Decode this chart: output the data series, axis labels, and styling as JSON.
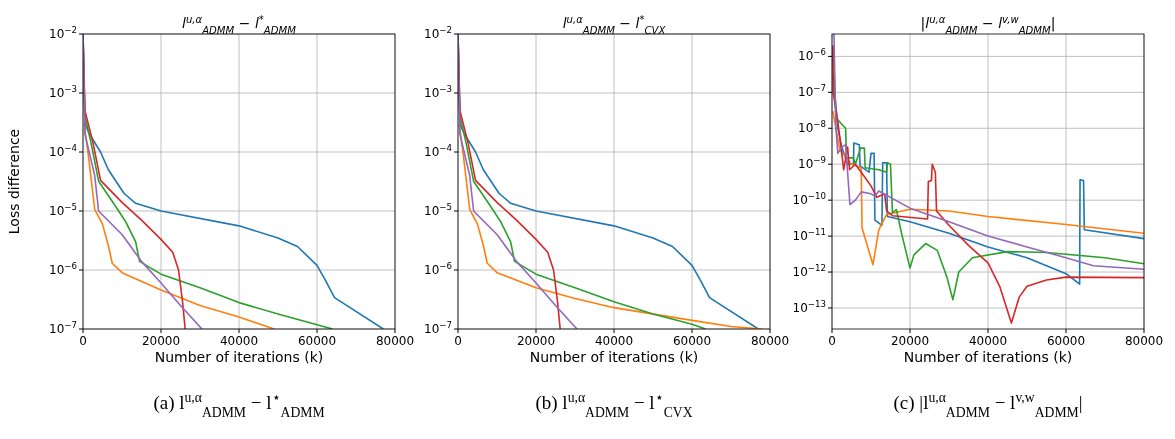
{
  "chart_data": [
    {
      "type": "line",
      "title": "l$^{u,α}$$_{ADMM}$ − l$^{*}$$_{ADMM}$",
      "xlabel": "Number of iterations (k)",
      "ylabel": "Loss difference",
      "annotations": [
        "(a) l$^{u,α}$$_{ADMM}$ − l$^{⋆}$$_{ADMM}$"
      ],
      "log": "y",
      "grid": true,
      "xlim": [
        0,
        80000
      ],
      "ylim": [
        1e-07,
        0.01
      ],
      "xticks": [
        0,
        20000,
        40000,
        60000,
        80000
      ],
      "yticks": [
        {
          "value": 1e-07,
          "label": "10$^{−7}$"
        },
        {
          "value": 1e-06,
          "label": "10$^{−6}$"
        },
        {
          "value": 1e-05,
          "label": "10$^{−5}$"
        },
        {
          "value": 0.0001,
          "label": "10$^{−4}$"
        },
        {
          "value": 0.001,
          "label": "10$^{−3}$"
        },
        {
          "value": 0.01,
          "label": "10$^{−2}$"
        }
      ],
      "series": [
        {
          "color": "#1f77b4",
          "x": [
            0,
            500,
            1500,
            4500,
            6500,
            10500,
            13500,
            20000,
            40000,
            50000,
            55000,
            60000,
            62000,
            64500,
            77000
          ],
          "values": [
            0.01,
            0.0003,
            0.00021,
            0.0001,
            5e-05,
            2e-05,
            1.35e-05,
            1e-05,
            5.6e-06,
            3.5e-06,
            2.5e-06,
            1.2e-06,
            7e-07,
            3.4e-07,
            1e-07
          ]
        },
        {
          "color": "#ff7f0e",
          "x": [
            300,
            1400,
            3000,
            5000,
            6500,
            7500,
            10000,
            20000,
            30000,
            40000,
            49000
          ],
          "values": [
            0.0003,
            8.5e-05,
            1.07e-05,
            6e-06,
            2.6e-06,
            1.3e-06,
            9e-07,
            4.6e-07,
            2.5e-07,
            1.6e-07,
            1e-07
          ]
        },
        {
          "color": "#2ca02c",
          "x": [
            0,
            500,
            2000,
            4000,
            8000,
            11000,
            13500,
            14500,
            20000,
            30000,
            40000,
            50000,
            64000
          ],
          "values": [
            0.01,
            0.0004,
            0.00015,
            3.2e-05,
            1.3e-05,
            6.5e-06,
            3e-06,
            1.4e-06,
            8.5e-07,
            5e-07,
            2.8e-07,
            1.8e-07,
            1e-07
          ]
        },
        {
          "color": "#d62728",
          "x": [
            0,
            500,
            2500,
            4500,
            10000,
            15000,
            20000,
            23000,
            24500,
            25500,
            26200
          ],
          "values": [
            0.01,
            0.0005,
            0.00015,
            3.3e-05,
            1.4e-05,
            7e-06,
            3.3e-06,
            2e-06,
            1e-06,
            3e-07,
            1e-07
          ]
        },
        {
          "color": "#9467bd",
          "x": [
            0,
            500,
            3000,
            3500,
            4000,
            10000,
            15000,
            20000,
            25000,
            30500
          ],
          "values": [
            0.01,
            0.0002,
            4e-05,
            2e-05,
            1e-05,
            4e-06,
            1.4e-06,
            6e-07,
            2.5e-07,
            1e-07
          ]
        }
      ]
    },
    {
      "type": "line",
      "title": "l$^{u,α}$$_{ADMM}$ − l$^{*}$$_{CVX}$",
      "xlabel": "Number of iterations (k)",
      "annotations": [
        "(b) l$^{u,α}$$_{ADMM}$ − l$^{⋆}$$_{CVX}$"
      ],
      "log": "y",
      "grid": true,
      "xlim": [
        0,
        80000
      ],
      "ylim": [
        1e-07,
        0.01
      ],
      "xticks": [
        0,
        20000,
        40000,
        60000,
        80000
      ],
      "yticks": [
        {
          "value": 1e-07,
          "label": "10$^{−7}$"
        },
        {
          "value": 1e-06,
          "label": "10$^{−6}$"
        },
        {
          "value": 1e-05,
          "label": "10$^{−5}$"
        },
        {
          "value": 0.0001,
          "label": "10$^{−4}$"
        },
        {
          "value": 0.001,
          "label": "10$^{−3}$"
        },
        {
          "value": 0.01,
          "label": "10$^{−2}$"
        }
      ],
      "series": [
        {
          "color": "#1f77b4",
          "x": [
            0,
            500,
            1500,
            4500,
            6500,
            10500,
            13500,
            20000,
            40000,
            50000,
            55000,
            60000,
            62000,
            64500,
            77000
          ],
          "values": [
            0.01,
            0.0003,
            0.00021,
            0.0001,
            5e-05,
            2e-05,
            1.35e-05,
            1e-05,
            5.6e-06,
            3.5e-06,
            2.5e-06,
            1.2e-06,
            7e-07,
            3.4e-07,
            1e-07
          ]
        },
        {
          "color": "#ff7f0e",
          "x": [
            300,
            1400,
            3000,
            5000,
            6500,
            7500,
            10000,
            20000,
            30000,
            40000,
            60000,
            70000,
            78000
          ],
          "values": [
            0.0003,
            8.5e-05,
            1.07e-05,
            6e-06,
            2.6e-06,
            1.3e-06,
            9e-07,
            5e-07,
            3.3e-07,
            2.3e-07,
            1.4e-07,
            1.1e-07,
            1e-07
          ]
        },
        {
          "color": "#2ca02c",
          "x": [
            0,
            500,
            2000,
            4000,
            8000,
            11000,
            13500,
            14500,
            20000,
            30000,
            40000,
            50000,
            60000,
            63500
          ],
          "values": [
            0.01,
            0.0004,
            0.00015,
            3.2e-05,
            1.3e-05,
            6.5e-06,
            3e-06,
            1.4e-06,
            8.5e-07,
            5e-07,
            2.9e-07,
            1.8e-07,
            1.2e-07,
            1e-07
          ]
        },
        {
          "color": "#d62728",
          "x": [
            0,
            500,
            2500,
            4500,
            10000,
            15000,
            20000,
            23000,
            24500,
            25500,
            26200
          ],
          "values": [
            0.01,
            0.0005,
            0.00015,
            3.3e-05,
            1.4e-05,
            7e-06,
            3.3e-06,
            2e-06,
            1e-06,
            3e-07,
            1e-07
          ]
        },
        {
          "color": "#9467bd",
          "x": [
            0,
            500,
            3000,
            3500,
            4000,
            10000,
            15000,
            20000,
            25000,
            30500
          ],
          "values": [
            0.01,
            0.0002,
            4e-05,
            2e-05,
            1e-05,
            4e-06,
            1.4e-06,
            6e-07,
            2.5e-07,
            1e-07
          ]
        }
      ]
    },
    {
      "type": "line",
      "title": "|l$^{u,α}$$_{ADMM}$ − l$^{v,w}$$_{ADMM}$|",
      "xlabel": "Number of iterations (k)",
      "annotations": [
        "(c) |l$^{u,α}$$_{ADMM}$ − l$^{v,w}$$_{ADMM}$|"
      ],
      "log": "y",
      "grid": true,
      "xlim": [
        0,
        80000
      ],
      "ylim": [
        2.6e-14,
        4.2e-06
      ],
      "xticks": [
        0,
        20000,
        40000,
        60000,
        80000
      ],
      "yticks": [
        {
          "value": 1e-13,
          "label": "10$^{−13}$"
        },
        {
          "value": 1e-12,
          "label": "10$^{−12}$"
        },
        {
          "value": 1e-11,
          "label": "10$^{−11}$"
        },
        {
          "value": 1e-10,
          "label": "10$^{−10}$"
        },
        {
          "value": 1e-09,
          "label": "10$^{−9}$"
        },
        {
          "value": 1e-08,
          "label": "10$^{−8}$"
        },
        {
          "value": 1e-07,
          "label": "10$^{−7}$"
        },
        {
          "value": 1e-06,
          "label": "10$^{−6}$"
        }
      ],
      "series": [
        {
          "color": "#1f77b4",
          "x": [
            300,
            1500,
            2500,
            4000,
            5500,
            5600,
            7000,
            7200,
            9500,
            10000,
            10800,
            11000,
            12800,
            13000,
            14000,
            14200,
            20000,
            30000,
            40000,
            50000,
            60000,
            63500,
            63600,
            64500,
            64700,
            80000
          ],
          "values": [
            3e-07,
            1e-08,
            3e-09,
            1e-09,
            1e-09,
            3.9e-09,
            3.5e-09,
            9e-10,
            6e-10,
            2e-09,
            2e-09,
            2.8e-11,
            2e-11,
            1.1e-09,
            1.1e-09,
            3.5e-11,
            2.5e-11,
            1.2e-11,
            5e-12,
            2.5e-12,
            9e-13,
            4.6e-13,
            3.7e-10,
            3.5e-10,
            1.5e-11,
            8.5e-12
          ]
        },
        {
          "color": "#ff7f0e",
          "x": [
            200,
            2000,
            5000,
            7500,
            7700,
            10500,
            12000,
            14000,
            20000,
            30000,
            40000,
            60000,
            80000
          ],
          "values": [
            3e-08,
            2.5e-09,
            1e-09,
            8e-10,
            1.7e-11,
            1.6e-12,
            1.5e-11,
            4e-11,
            5.6e-11,
            5e-11,
            3.5e-11,
            2.1e-11,
            1.2e-11
          ]
        },
        {
          "color": "#2ca02c",
          "x": [
            200,
            500,
            1000,
            2500,
            3500,
            3700,
            5500,
            6000,
            7300,
            8300,
            8500,
            12000,
            14000,
            14200,
            15000,
            15500,
            16500,
            18000,
            20000,
            21000,
            24000,
            27000,
            29500,
            31000,
            32500,
            36000,
            45000,
            55000,
            70000,
            80000
          ],
          "values": [
            2e-06,
            4.8e-07,
            2e-08,
            1.3e-08,
            1e-08,
            1.5e-09,
            1.5e-09,
            1e-09,
            2.8e-09,
            2.8e-09,
            8e-10,
            7e-10,
            6e-10,
            1.1e-09,
            1e-09,
            4.4e-11,
            5.5e-11,
            1e-11,
            1.3e-12,
            3e-12,
            6.2e-12,
            4e-12,
            7e-13,
            1.7e-13,
            1e-12,
            2.5e-12,
            3.7e-12,
            3.5e-12,
            2.5e-12,
            1.7e-12
          ]
        },
        {
          "color": "#d62728",
          "x": [
            200,
            300,
            1500,
            2500,
            3000,
            4000,
            4500,
            6000,
            8000,
            10000,
            11500,
            13500,
            14000,
            15500,
            24500,
            24700,
            25500,
            25700,
            26500,
            26800,
            30000,
            35000,
            40000,
            43000,
            46000,
            48000,
            50000,
            55000,
            60000,
            80000
          ],
          "values": [
            2e-06,
            1e-07,
            1.5e-08,
            2e-09,
            7e-10,
            3e-09,
            7e-10,
            1e-09,
            5e-10,
            2.5e-10,
            1.2e-10,
            1.5e-10,
            5e-11,
            3.7e-11,
            3e-11,
            3.3e-10,
            3.5e-10,
            1e-09,
            6e-10,
            5e-11,
            2e-11,
            5.5e-12,
            1.8e-12,
            4e-13,
            3.8e-14,
            2e-13,
            4e-13,
            6e-13,
            7.2e-13,
            7e-13
          ]
        },
        {
          "color": "#9467bd",
          "x": [
            500,
            800,
            1000,
            1500,
            2500,
            3500,
            4200,
            4600,
            6000,
            7500,
            10000,
            11000,
            12000,
            20000,
            30000,
            40000,
            50000,
            60000,
            67000,
            80000
          ],
          "values": [
            4.2e-06,
            1e-07,
            1e-08,
            2e-09,
            3e-09,
            3.5e-09,
            3e-10,
            7.5e-11,
            1e-10,
            1.7e-10,
            1.5e-10,
            1.3e-10,
            1.8e-10,
            6e-11,
            2.5e-11,
            1e-11,
            5e-12,
            2.5e-12,
            1.5e-12,
            1.2e-12
          ]
        }
      ]
    }
  ]
}
